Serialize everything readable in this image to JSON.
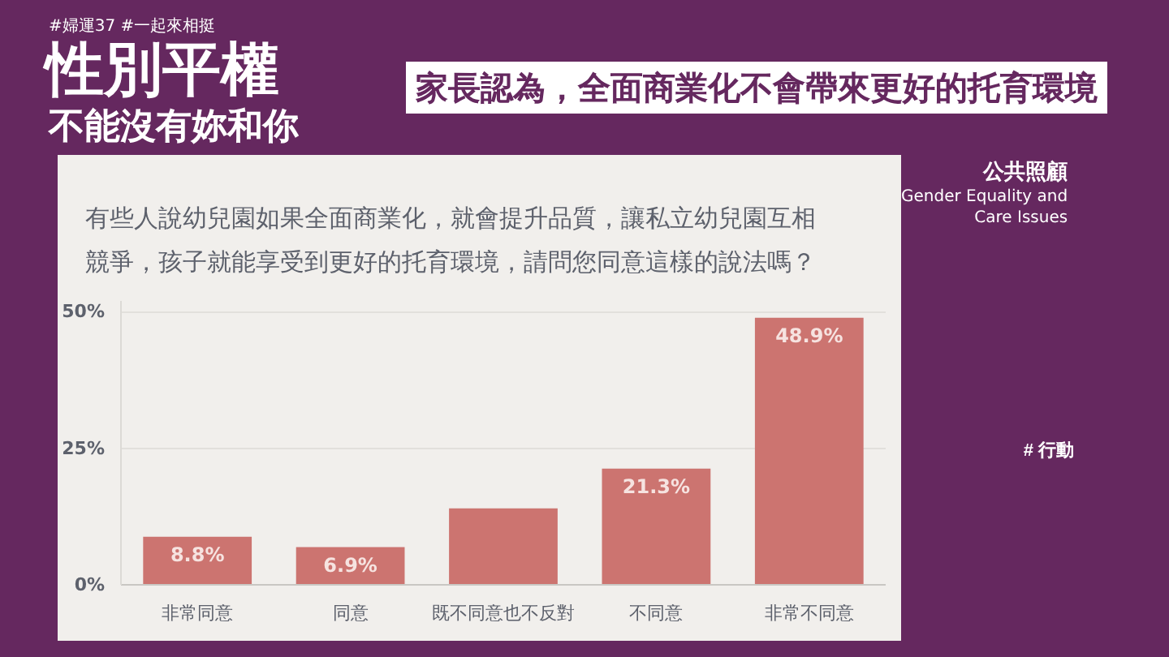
{
  "chart_data": {
    "type": "bar",
    "title": "有些人說幼兒園如果全面商業化，就會提升品質，讓私立幼兒園互相競爭，孩子就能享受到更好的托育環境，請問您同意這樣的說法嗎？",
    "subtitle": "家長認為，全面商業化不會帶來更好的托育環境",
    "annotations": [
      "#婦運37 #一起來相挺",
      "性別平權",
      "不能沒有妳和你",
      "公共照顧",
      "Gender Equality and Care Issues",
      "# 行動"
    ],
    "categories": [
      "非常同意",
      "同意",
      "既不同意也不反對",
      "不同意",
      "非常不同意"
    ],
    "values": [
      8.8,
      6.9,
      14,
      21.3,
      48.9
    ],
    "value_labels": [
      "8.8%",
      "6.9%",
      null,
      "21.3%",
      "48.9%"
    ],
    "color": "#cc7470",
    "ylim": [
      0,
      52
    ],
    "yticks": [
      {
        "value": 0,
        "label": "0%"
      },
      {
        "value": 25,
        "label": "25%"
      },
      {
        "value": 50,
        "label": "50%"
      }
    ],
    "grid": "y"
  }
}
